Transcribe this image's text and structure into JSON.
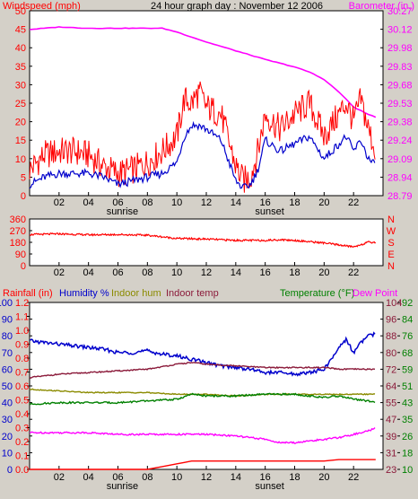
{
  "title": "24 hour graph day : November 12 2006",
  "colors": {
    "background": "#d4d0c8",
    "plot_background": "#ffffff",
    "wind_gust": "#ff0000",
    "wind_avg": "#0000cc",
    "barometer": "#ff00ff",
    "wind_direction": "#ff0000",
    "humidity": "#0000cc",
    "indoor_humidity": "#8b8b00",
    "indoor_temp": "#8b1a3a",
    "temperature": "#008000",
    "dew_point": "#ff00ff",
    "rainfall": "#ff0000"
  },
  "chart_data": [
    {
      "id": "wind",
      "type": "line",
      "labels": {
        "left_axis": "Windspeed (mph)",
        "right_axis": "Barometer (in.)"
      },
      "x_ticks": [
        "02",
        "04",
        "06",
        "08",
        "10",
        "12",
        "14",
        "16",
        "18",
        "20",
        "22"
      ],
      "x_annotations": [
        "sunrise",
        "sunset"
      ],
      "y_left": {
        "min": 0,
        "max": 50,
        "ticks": [
          "0",
          "5",
          "10",
          "15",
          "20",
          "25",
          "30",
          "35",
          "40",
          "45",
          "50"
        ]
      },
      "y_right": {
        "min": 28.79,
        "max": 30.27,
        "ticks": [
          "28.79",
          "28.94",
          "29.09",
          "29.24",
          "29.38",
          "29.53",
          "29.68",
          "29.83",
          "29.98",
          "30.12",
          "30.27"
        ]
      },
      "series": [
        {
          "key": "gust",
          "axis": "left",
          "x": [
            0,
            1,
            2,
            3,
            4,
            5,
            6,
            7,
            8,
            9,
            10,
            10.5,
            11,
            11.5,
            12,
            13,
            14,
            14.5,
            15,
            15.5,
            16,
            17,
            18,
            19,
            20,
            21,
            21.5,
            22,
            22.5,
            23,
            23.5
          ],
          "y": [
            7,
            11,
            12,
            12,
            11,
            8,
            6,
            7,
            9,
            12,
            16,
            26,
            25,
            28,
            24,
            22,
            8,
            4,
            5,
            12,
            22,
            18,
            22,
            25,
            16,
            22,
            25,
            20,
            26,
            18,
            12
          ]
        },
        {
          "key": "avg",
          "axis": "left",
          "x": [
            0,
            1,
            2,
            3,
            4,
            5,
            6,
            7,
            8,
            9,
            10,
            10.5,
            11,
            11.5,
            12,
            13,
            14,
            14.5,
            15,
            15.5,
            16,
            17,
            18,
            19,
            20,
            21,
            21.5,
            22,
            22.5,
            23,
            23.5
          ],
          "y": [
            3,
            5,
            6,
            6,
            6,
            5,
            3,
            4,
            5,
            6,
            9,
            16,
            19,
            19,
            18,
            15,
            4,
            2,
            3,
            7,
            15,
            12,
            14,
            16,
            10,
            14,
            16,
            12,
            15,
            10,
            8
          ]
        },
        {
          "key": "barometer",
          "axis": "right",
          "x": [
            0,
            2,
            4,
            6,
            8,
            9,
            10,
            12,
            14,
            16,
            18,
            19,
            20,
            21,
            22,
            23,
            23.5
          ],
          "y": [
            30.12,
            30.14,
            30.13,
            30.13,
            30.13,
            30.13,
            30.1,
            30.02,
            29.95,
            29.88,
            29.82,
            29.78,
            29.72,
            29.62,
            29.5,
            29.44,
            29.42
          ]
        }
      ]
    },
    {
      "id": "direction",
      "type": "line",
      "x_ticks": [
        "02",
        "04",
        "06",
        "08",
        "10",
        "12",
        "14",
        "16",
        "18",
        "20",
        "22"
      ],
      "y_left": {
        "min": 0,
        "max": 360,
        "ticks": [
          "0",
          "90",
          "180",
          "270",
          "360"
        ]
      },
      "y_right_ticks": [
        "N",
        "E",
        "S",
        "W",
        "N"
      ],
      "series": [
        {
          "key": "direction",
          "x": [
            0,
            2,
            4,
            6,
            8,
            10,
            12,
            14,
            16,
            17,
            18,
            20,
            21,
            22,
            23,
            23.5
          ],
          "y": [
            240,
            245,
            238,
            240,
            235,
            210,
            205,
            195,
            195,
            200,
            195,
            175,
            160,
            145,
            180,
            180
          ]
        }
      ]
    },
    {
      "id": "temps",
      "type": "line",
      "labels": {
        "rainfall": "Rainfall (in)",
        "humidity": "Humidity %",
        "indoor_humidity": "Indoor hum",
        "indoor_temp": "Indoor temp",
        "temperature": "Temperature (°F)",
        "dew_point": "Dew Point"
      },
      "x_ticks": [
        "02",
        "04",
        "06",
        "08",
        "10",
        "12",
        "14",
        "16",
        "18",
        "20",
        "22"
      ],
      "x_annotations": [
        "sunrise",
        "sunset"
      ],
      "y_humidity": {
        "min": 0,
        "max": 100,
        "ticks": [
          "0",
          "10",
          "20",
          "30",
          "40",
          "50",
          "60",
          "70",
          "80",
          "90",
          "100"
        ]
      },
      "y_rain": {
        "min": 0.0,
        "max": 1.2,
        "ticks": [
          "0.0",
          "0.1",
          "0.2",
          "0.3",
          "0.4",
          "0.5",
          "0.6",
          "0.7",
          "0.8",
          "0.9",
          "1.0",
          "1.1",
          "1.2"
        ]
      },
      "y_temp_outer": {
        "ticks": [
          "23",
          "31",
          "39",
          "47",
          "55",
          "64",
          "72",
          "80",
          "88",
          "96",
          "104"
        ]
      },
      "y_temp_inner": {
        "ticks": [
          "10",
          "18",
          "26",
          "35",
          "43",
          "51",
          "59",
          "68",
          "76",
          "84",
          "92"
        ]
      },
      "series": [
        {
          "key": "humidity",
          "axis": "humidity",
          "x": [
            0,
            1,
            2,
            3,
            4,
            5,
            6,
            7,
            8,
            9,
            10,
            11,
            12,
            13,
            14,
            15,
            16,
            17,
            18,
            19,
            20,
            20.5,
            21,
            21.5,
            22,
            22.5,
            23,
            23.5
          ],
          "y": [
            77,
            76,
            75,
            74,
            73,
            72,
            70,
            70,
            71,
            69,
            68,
            66,
            64,
            62,
            61,
            60,
            58,
            58,
            57,
            58,
            60,
            66,
            73,
            78,
            70,
            76,
            80,
            81
          ]
        },
        {
          "key": "indoor_temp",
          "axis": "humidity",
          "x": [
            0,
            2,
            4,
            6,
            8,
            10,
            11,
            12,
            14,
            16,
            18,
            20,
            21,
            22,
            23,
            23.5
          ],
          "y": [
            55,
            57,
            58,
            59,
            60,
            63,
            64,
            63,
            62,
            61,
            61,
            61,
            60,
            60,
            60,
            60
          ]
        },
        {
          "key": "indoor_humidity",
          "axis": "humidity",
          "x": [
            0,
            2,
            4,
            6,
            8,
            10,
            12,
            14,
            16,
            18,
            20,
            22,
            23.5
          ],
          "y": [
            48,
            47,
            46,
            46,
            46,
            45,
            45,
            44,
            45,
            45,
            45,
            45,
            45
          ]
        },
        {
          "key": "temperature",
          "axis": "humidity",
          "x": [
            0,
            2,
            4,
            6,
            8,
            10,
            11,
            12,
            14,
            16,
            18,
            20,
            21,
            22,
            23,
            23.5
          ],
          "y": [
            39,
            40,
            40,
            40,
            41,
            42,
            45,
            44,
            44,
            45,
            45,
            43,
            44,
            42,
            41,
            40
          ]
        },
        {
          "key": "dew_point",
          "axis": "humidity",
          "x": [
            0,
            2,
            4,
            6,
            8,
            10,
            12,
            14,
            16,
            17,
            18,
            19,
            20,
            21,
            22,
            23,
            23.5
          ],
          "y": [
            22,
            22,
            22,
            21,
            21,
            21,
            21,
            20,
            18,
            16,
            16,
            17,
            18,
            19,
            21,
            23,
            25
          ]
        },
        {
          "key": "rainfall",
          "axis": "rain",
          "x": [
            0,
            2,
            4,
            6,
            8,
            9,
            10,
            10.5,
            11,
            12,
            20,
            21,
            23.5
          ],
          "y": [
            0.0,
            0.0,
            0.0,
            0.0,
            0.0,
            0.02,
            0.04,
            0.05,
            0.06,
            0.06,
            0.06,
            0.07,
            0.07
          ]
        }
      ]
    }
  ]
}
